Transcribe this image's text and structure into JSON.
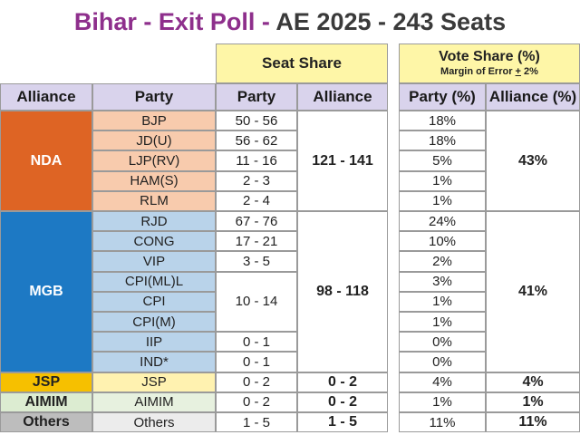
{
  "title": {
    "part1": "Bihar - Exit Poll - ",
    "part2": "AE 2025 - 243 Seats"
  },
  "headers": {
    "seat_share": "Seat Share",
    "vote_share": "Vote Share (%)",
    "margin_prefix": "Margin of Error ",
    "margin_pm": "+",
    "margin_suffix": " 2%",
    "alliance": "Alliance",
    "party": "Party",
    "party_seats": "Party",
    "alliance_seats": "Alliance",
    "party_pct": "Party (%)",
    "alliance_pct": "Alliance (%)"
  },
  "colors": {
    "nda": "#de6424",
    "nda_party": "#f8cbad",
    "mgb": "#1d79c4",
    "mgb_party": "#b9d3ea",
    "jsp": "#f6c000",
    "jsp_party": "#fff2b0",
    "aimim": "#dcecd1",
    "aimim_party": "#e7f1df",
    "others": "#bdbdbd",
    "others_party": "#ececec",
    "header_yellow": "#fef6a7",
    "header_lavender": "#d9d3ec",
    "title_purple": "#8e2f8c"
  },
  "alliances": [
    {
      "name": "NDA",
      "seats": "121 - 141",
      "vote": "43%",
      "parties": [
        {
          "party": "BJP",
          "seats": "50 - 56",
          "vote": "18%"
        },
        {
          "party": "JD(U)",
          "seats": "56 - 62",
          "vote": "18%"
        },
        {
          "party": "LJP(RV)",
          "seats": "11 - 16",
          "vote": "5%"
        },
        {
          "party": "HAM(S)",
          "seats": "2 - 3",
          "vote": "1%"
        },
        {
          "party": "RLM",
          "seats": "2 - 4",
          "vote": "1%"
        }
      ]
    },
    {
      "name": "MGB",
      "seats": "98 - 118",
      "vote": "41%",
      "left_block_seats": "10 - 14",
      "parties": [
        {
          "party": "RJD",
          "seats": "67 - 76",
          "vote": "24%"
        },
        {
          "party": "CONG",
          "seats": "17 - 21",
          "vote": "10%"
        },
        {
          "party": "VIP",
          "seats": "3 - 5",
          "vote": "2%"
        },
        {
          "party": "CPI(ML)L",
          "seats": "",
          "vote": "3%"
        },
        {
          "party": "CPI",
          "seats": "",
          "vote": "1%"
        },
        {
          "party": "CPI(M)",
          "seats": "",
          "vote": "1%"
        },
        {
          "party": "IIP",
          "seats": "0 - 1",
          "vote": "0%"
        },
        {
          "party": "IND*",
          "seats": "0 - 1",
          "vote": "0%"
        }
      ]
    },
    {
      "name": "JSP",
      "seats": "0 - 2",
      "vote": "4%",
      "parties": [
        {
          "party": "JSP",
          "seats": "0 - 2",
          "vote": "4%"
        }
      ]
    },
    {
      "name": "AIMIM",
      "seats": "0 - 2",
      "vote": "1%",
      "parties": [
        {
          "party": "AIMIM",
          "seats": "0 - 2",
          "vote": "1%"
        }
      ]
    },
    {
      "name": "Others",
      "seats": "1 - 5",
      "vote": "11%",
      "parties": [
        {
          "party": "Others",
          "seats": "1 - 5",
          "vote": "11%"
        }
      ]
    }
  ]
}
